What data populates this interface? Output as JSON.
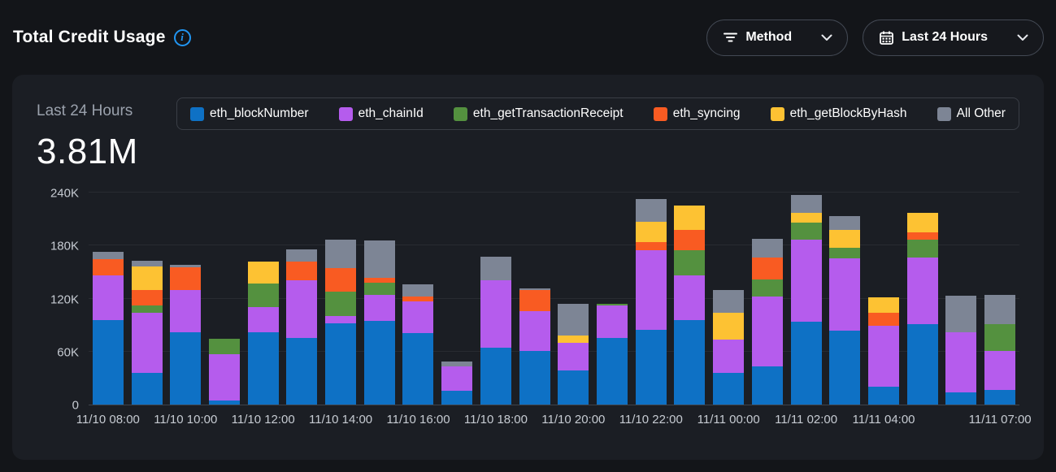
{
  "header": {
    "title": "Total Credit Usage",
    "filters": {
      "method_label": "Method",
      "range_label": "Last 24 Hours"
    }
  },
  "summary": {
    "period_label": "Last 24 Hours",
    "total": "3.81M"
  },
  "colors": {
    "page_bg": "#131519",
    "panel_bg": "#1b1e24",
    "accent_info": "#2196f3",
    "gridline": "#282b31",
    "axis_text": "#c6cbd2"
  },
  "chart_data": {
    "type": "bar",
    "stacked": true,
    "value_unit": "K credits",
    "ylim": [
      0,
      240
    ],
    "yticks": [
      {
        "value": 0,
        "label": "0"
      },
      {
        "value": 60,
        "label": "60K"
      },
      {
        "value": 120,
        "label": "120K"
      },
      {
        "value": 180,
        "label": "180K"
      },
      {
        "value": 240,
        "label": "240K"
      }
    ],
    "x_ticks": [
      {
        "bar": 0,
        "label": "11/10 08:00"
      },
      {
        "bar": 2,
        "label": "11/10 10:00"
      },
      {
        "bar": 4,
        "label": "11/10 12:00"
      },
      {
        "bar": 6,
        "label": "11/10 14:00"
      },
      {
        "bar": 8,
        "label": "11/10 16:00"
      },
      {
        "bar": 10,
        "label": "11/10 18:00"
      },
      {
        "bar": 12,
        "label": "11/10 20:00"
      },
      {
        "bar": 14,
        "label": "11/10 22:00"
      },
      {
        "bar": 16,
        "label": "11/11 00:00"
      },
      {
        "bar": 18,
        "label": "11/11 02:00"
      },
      {
        "bar": 20,
        "label": "11/11 04:00"
      },
      {
        "bar": 23,
        "label": "11/11 07:00"
      }
    ],
    "bar_count": 24,
    "series": [
      {
        "name": "eth_blockNumber",
        "color": "#0e71c5",
        "values": [
          96,
          36,
          82,
          5,
          82,
          75,
          92,
          95,
          81,
          16,
          64,
          61,
          39,
          75,
          85,
          96,
          36,
          43,
          94,
          84,
          20,
          91,
          14,
          17
        ]
      },
      {
        "name": "eth_chainId",
        "color": "#b55ced",
        "values": [
          50,
          68,
          48,
          52,
          28,
          66,
          8,
          29,
          36,
          27,
          77,
          45,
          31,
          37,
          90,
          50,
          38,
          79,
          93,
          82,
          69,
          75,
          68,
          44
        ]
      },
      {
        "name": "eth_getTransactionReceipt",
        "color": "#54913f",
        "values": [
          0,
          8,
          0,
          18,
          27,
          0,
          28,
          14,
          0,
          0,
          0,
          0,
          0,
          2,
          0,
          29,
          0,
          20,
          19,
          12,
          0,
          21,
          0,
          30
        ]
      },
      {
        "name": "eth_syncing",
        "color": "#f95b22",
        "values": [
          19,
          18,
          25,
          0,
          0,
          21,
          27,
          6,
          5,
          0,
          0,
          24,
          0,
          0,
          9,
          23,
          0,
          24,
          0,
          0,
          15,
          8,
          0,
          0
        ]
      },
      {
        "name": "eth_getBlockByHash",
        "color": "#fdc233",
        "values": [
          0,
          26,
          0,
          0,
          25,
          0,
          0,
          0,
          0,
          0,
          0,
          0,
          8,
          0,
          23,
          27,
          30,
          0,
          11,
          20,
          17,
          22,
          0,
          0
        ]
      },
      {
        "name": "All Other",
        "color": "#7d8595",
        "values": [
          8,
          7,
          3,
          0,
          0,
          14,
          32,
          42,
          14,
          6,
          26,
          2,
          36,
          0,
          26,
          0,
          26,
          22,
          20,
          15,
          0,
          0,
          41,
          33
        ]
      }
    ]
  }
}
